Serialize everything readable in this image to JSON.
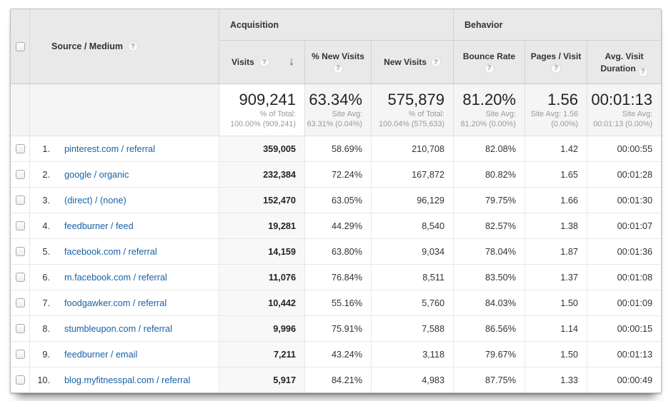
{
  "colors": {
    "link_blue": "#1762a8",
    "header_bg": "#e9e9e9",
    "summary_bg": "#f5f5f5",
    "sorted_col_bg": "#f8f8f8"
  },
  "icons": {
    "help_icon": "?",
    "sort_desc_icon": "↓"
  },
  "table": {
    "groups": [
      {
        "label": "Acquisition"
      },
      {
        "label": "Behavior"
      }
    ],
    "columns": {
      "source": {
        "label": "Source / Medium"
      },
      "visits": {
        "label": "Visits"
      },
      "pct_new": {
        "label": "% New Visits"
      },
      "new_visits": {
        "label": "New Visits"
      },
      "bounce": {
        "label": "Bounce Rate"
      },
      "pages": {
        "label": "Pages / Visit"
      },
      "duration": {
        "label": "Avg. Visit Duration"
      }
    },
    "summary": {
      "visits": {
        "value": "909,241",
        "sub1": "% of Total:",
        "sub2": "100.00% (909,241)"
      },
      "pct_new": {
        "value": "63.34%",
        "sub1": "Site Avg:",
        "sub2": "63.31% (0.04%)"
      },
      "new_visits": {
        "value": "575,879",
        "sub1": "% of Total:",
        "sub2": "100.04% (575,633)"
      },
      "bounce": {
        "value": "81.20%",
        "sub1": "Site Avg:",
        "sub2": "81.20% (0.00%)"
      },
      "pages": {
        "value": "1.56",
        "sub1": "Site Avg: 1.56",
        "sub2": "(0.00%)"
      },
      "duration": {
        "value": "00:01:13",
        "sub1": "Site Avg:",
        "sub2": "00:01:13 (0.00%)"
      }
    },
    "rows": [
      {
        "rank": "1.",
        "source": "pinterest.com / referral",
        "visits": "359,005",
        "pct_new": "58.69%",
        "new_visits": "210,708",
        "bounce": "82.08%",
        "pages": "1.42",
        "duration": "00:00:55"
      },
      {
        "rank": "2.",
        "source": "google / organic",
        "visits": "232,384",
        "pct_new": "72.24%",
        "new_visits": "167,872",
        "bounce": "80.82%",
        "pages": "1.65",
        "duration": "00:01:28"
      },
      {
        "rank": "3.",
        "source": "(direct) / (none)",
        "visits": "152,470",
        "pct_new": "63.05%",
        "new_visits": "96,129",
        "bounce": "79.75%",
        "pages": "1.66",
        "duration": "00:01:30"
      },
      {
        "rank": "4.",
        "source": "feedburner / feed",
        "visits": "19,281",
        "pct_new": "44.29%",
        "new_visits": "8,540",
        "bounce": "82.57%",
        "pages": "1.38",
        "duration": "00:01:07"
      },
      {
        "rank": "5.",
        "source": "facebook.com / referral",
        "visits": "14,159",
        "pct_new": "63.80%",
        "new_visits": "9,034",
        "bounce": "78.04%",
        "pages": "1.87",
        "duration": "00:01:36"
      },
      {
        "rank": "6.",
        "source": "m.facebook.com / referral",
        "visits": "11,076",
        "pct_new": "76.84%",
        "new_visits": "8,511",
        "bounce": "83.50%",
        "pages": "1.37",
        "duration": "00:01:08"
      },
      {
        "rank": "7.",
        "source": "foodgawker.com / referral",
        "visits": "10,442",
        "pct_new": "55.16%",
        "new_visits": "5,760",
        "bounce": "84.03%",
        "pages": "1.50",
        "duration": "00:01:09"
      },
      {
        "rank": "8.",
        "source": "stumbleupon.com / referral",
        "visits": "9,996",
        "pct_new": "75.91%",
        "new_visits": "7,588",
        "bounce": "86.56%",
        "pages": "1.14",
        "duration": "00:00:15"
      },
      {
        "rank": "9.",
        "source": "feedburner / email",
        "visits": "7,211",
        "pct_new": "43.24%",
        "new_visits": "3,118",
        "bounce": "79.67%",
        "pages": "1.50",
        "duration": "00:01:13"
      },
      {
        "rank": "10.",
        "source": "blog.myfitnesspal.com / referral",
        "visits": "5,917",
        "pct_new": "84.21%",
        "new_visits": "4,983",
        "bounce": "87.75%",
        "pages": "1.33",
        "duration": "00:00:49"
      }
    ]
  }
}
